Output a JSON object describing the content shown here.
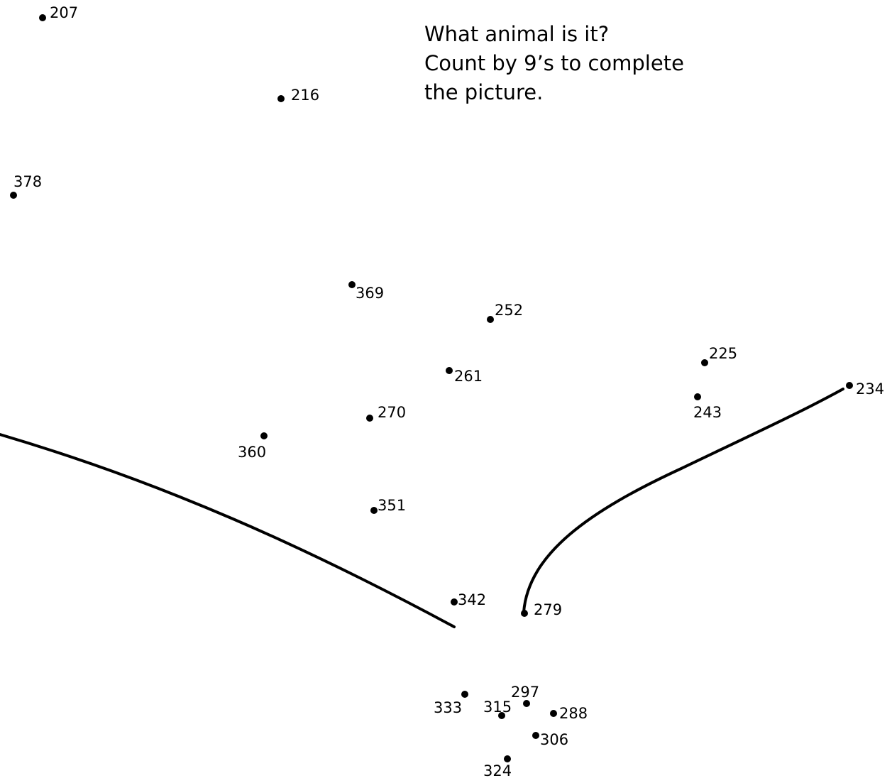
{
  "instructions": {
    "question": "What animal is it?",
    "line2": "Count by 9’s to complete",
    "line3": "the picture."
  },
  "dots": [
    {
      "label": "207"
    },
    {
      "label": "216"
    },
    {
      "label": "225"
    },
    {
      "label": "234"
    },
    {
      "label": "243"
    },
    {
      "label": "252"
    },
    {
      "label": "261"
    },
    {
      "label": "270"
    },
    {
      "label": "279"
    },
    {
      "label": "288"
    },
    {
      "label": "297"
    },
    {
      "label": "306"
    },
    {
      "label": "315"
    },
    {
      "label": "324"
    },
    {
      "label": "333"
    },
    {
      "label": "342"
    },
    {
      "label": "351"
    },
    {
      "label": "360"
    },
    {
      "label": "369"
    },
    {
      "label": "378"
    }
  ],
  "colors": {
    "ink": "#000000",
    "paper": "#ffffff"
  }
}
